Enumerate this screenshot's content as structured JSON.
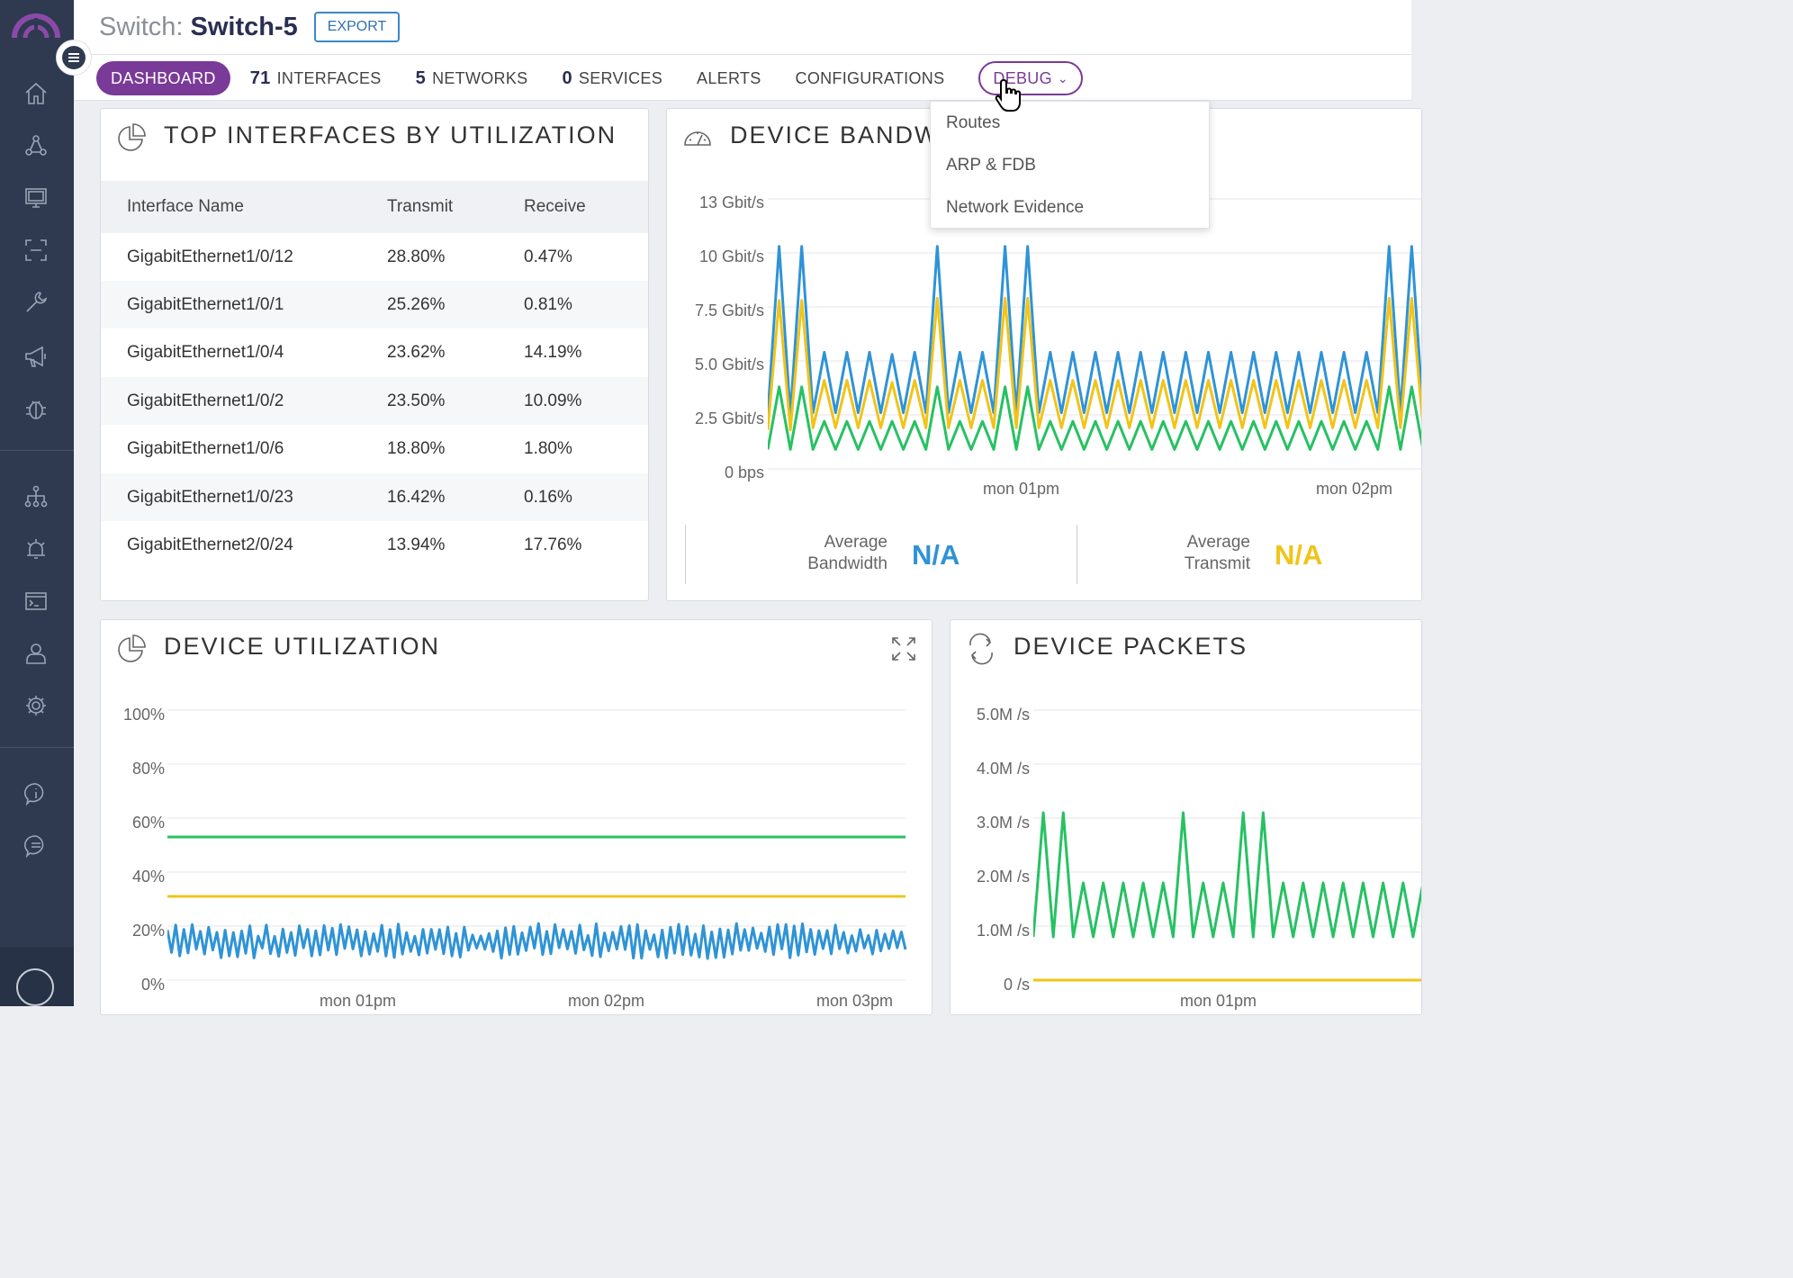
{
  "header": {
    "title_prefix": "Switch:",
    "title_name": "Switch-5",
    "export_label": "EXPORT"
  },
  "tabs": [
    {
      "count": "",
      "label": "DASHBOARD",
      "active": true
    },
    {
      "count": "71",
      "label": "INTERFACES"
    },
    {
      "count": "5",
      "label": "NETWORKS"
    },
    {
      "count": "0",
      "label": "SERVICES"
    },
    {
      "count": "",
      "label": "ALERTS"
    },
    {
      "count": "",
      "label": "CONFIGURATIONS"
    },
    {
      "count": "",
      "label": "DEBUG"
    }
  ],
  "debug_menu": [
    "Routes",
    "ARP & FDB",
    "Network Evidence"
  ],
  "sidebar_icons": [
    "home-icon",
    "topology-icon",
    "monitor-icon",
    "scan-icon",
    "wrench-icon",
    "megaphone-icon",
    "bug-icon",
    "hierarchy-icon",
    "alarm-icon",
    "terminal-icon",
    "user-icon",
    "gear-icon",
    "info-icon",
    "chat-icon",
    "avatar-icon"
  ],
  "top_interfaces": {
    "title": "TOP INTERFACES BY UTILIZATION",
    "columns": [
      "Interface Name",
      "Transmit",
      "Receive"
    ],
    "rows": [
      [
        "GigabitEthernet1/0/12",
        "28.80%",
        "0.47%"
      ],
      [
        "GigabitEthernet1/0/1",
        "25.26%",
        "0.81%"
      ],
      [
        "GigabitEthernet1/0/4",
        "23.62%",
        "14.19%"
      ],
      [
        "GigabitEthernet1/0/2",
        "23.50%",
        "10.09%"
      ],
      [
        "GigabitEthernet1/0/6",
        "18.80%",
        "1.80%"
      ],
      [
        "GigabitEthernet1/0/23",
        "16.42%",
        "0.16%"
      ],
      [
        "GigabitEthernet2/0/24",
        "13.94%",
        "17.76%"
      ]
    ]
  },
  "device_bandwidth": {
    "title": "DEVICE BANDW",
    "stats": [
      {
        "label1": "Average",
        "label2": "Bandwidth",
        "value": "N/A",
        "color": "#2f93d6"
      },
      {
        "label1": "Average",
        "label2": "Transmit",
        "value": "N/A",
        "color": "#f0c419"
      }
    ]
  },
  "device_utilization": {
    "title": "DEVICE UTILIZATION"
  },
  "device_packets": {
    "title": "DEVICE PACKETS"
  },
  "chart_data": [
    {
      "type": "line",
      "title": "DEVICE BANDW",
      "y_ticks": [
        "13 Gbit/s",
        "10 Gbit/s",
        "7.5 Gbit/s",
        "5.0 Gbit/s",
        "2.5 Gbit/s",
        "0 bps"
      ],
      "x_ticks": [
        "mon 01pm",
        "mon 02pm"
      ],
      "ylim": [
        0,
        12.5
      ],
      "series": [
        {
          "color": "#2f93d6",
          "values": [
            2.5,
            10.3,
            2.5,
            10.3,
            2.6,
            5.4,
            2.6,
            5.4,
            2.6,
            5.4,
            2.6,
            5.3,
            2.6,
            5.4,
            2.6,
            10.3,
            2.6,
            5.4,
            2.6,
            5.4,
            2.6,
            10.3,
            2.6,
            10.3,
            2.6,
            5.4,
            2.6,
            5.4,
            2.6,
            5.4,
            2.6,
            5.4,
            2.6,
            5.4,
            2.6,
            5.4,
            2.6,
            5.4,
            2.6,
            5.4,
            2.6,
            5.4,
            2.6,
            5.4,
            2.6,
            5.4,
            2.6,
            5.4,
            2.6,
            5.4,
            2.6,
            5.4,
            2.6,
            5.4,
            2.6,
            10.3,
            2.6,
            10.3,
            2.6
          ]
        },
        {
          "color": "#f0c419",
          "values": [
            1.8,
            7.8,
            1.8,
            7.8,
            1.9,
            4.1,
            1.9,
            4.1,
            1.9,
            4.1,
            1.9,
            4.0,
            1.9,
            4.1,
            1.9,
            7.9,
            1.9,
            4.1,
            1.9,
            4.1,
            1.9,
            7.9,
            1.9,
            7.9,
            1.9,
            4.1,
            1.9,
            4.1,
            1.9,
            4.1,
            1.9,
            4.1,
            1.9,
            4.1,
            1.9,
            4.1,
            1.9,
            4.1,
            1.9,
            4.1,
            1.9,
            4.1,
            1.9,
            4.1,
            1.9,
            4.1,
            1.9,
            4.1,
            1.9,
            4.1,
            1.9,
            4.1,
            1.9,
            4.1,
            1.9,
            7.9,
            1.9,
            7.9,
            1.9
          ]
        },
        {
          "color": "#27c163",
          "values": [
            0.9,
            3.8,
            0.9,
            3.8,
            0.9,
            2.2,
            0.9,
            2.2,
            0.9,
            2.2,
            0.9,
            2.2,
            0.9,
            2.2,
            0.9,
            3.8,
            0.9,
            2.2,
            0.9,
            2.2,
            0.9,
            3.8,
            0.9,
            3.8,
            0.9,
            2.2,
            0.9,
            2.2,
            0.9,
            2.2,
            0.9,
            2.2,
            0.9,
            2.2,
            0.9,
            2.2,
            0.9,
            2.2,
            0.9,
            2.2,
            0.9,
            2.2,
            0.9,
            2.2,
            0.9,
            2.2,
            0.9,
            2.2,
            0.9,
            2.2,
            0.9,
            2.2,
            0.9,
            2.2,
            0.9,
            3.8,
            0.9,
            3.8,
            0.9
          ]
        }
      ]
    },
    {
      "type": "line",
      "title": "DEVICE UTILIZATION",
      "y_ticks": [
        "100%",
        "80%",
        "60%",
        "40%",
        "20%",
        "0%"
      ],
      "x_ticks": [
        "mon 01pm",
        "mon 02pm",
        "mon 03pm"
      ],
      "ylim": [
        0,
        100
      ],
      "series": [
        {
          "color": "#27c163",
          "constant": 53
        },
        {
          "color": "#f0c419",
          "constant": 31
        },
        {
          "color": "#2f93d6",
          "noise": {
            "low": 8,
            "high": 21,
            "points": 180
          }
        }
      ]
    },
    {
      "type": "line",
      "title": "DEVICE PACKETS",
      "y_ticks": [
        "5.0M /s",
        "4.0M /s",
        "3.0M /s",
        "2.0M /s",
        "1.0M /s",
        "0 /s"
      ],
      "x_ticks": [
        "mon 01pm"
      ],
      "ylim": [
        0,
        5.0
      ],
      "series": [
        {
          "color": "#f0c419",
          "constant": 0
        },
        {
          "color": "#27c163",
          "values": [
            0.8,
            3.1,
            0.8,
            3.1,
            0.8,
            1.8,
            0.8,
            1.8,
            0.8,
            1.8,
            0.8,
            1.8,
            0.8,
            1.8,
            0.8,
            3.1,
            0.8,
            1.8,
            0.8,
            1.8,
            0.8,
            3.1,
            0.8,
            3.1,
            0.8,
            1.8,
            0.8,
            1.8,
            0.8,
            1.8,
            0.8,
            1.8,
            0.8,
            1.8,
            0.8,
            1.8,
            0.8,
            1.8,
            0.8,
            1.8
          ]
        }
      ]
    }
  ]
}
